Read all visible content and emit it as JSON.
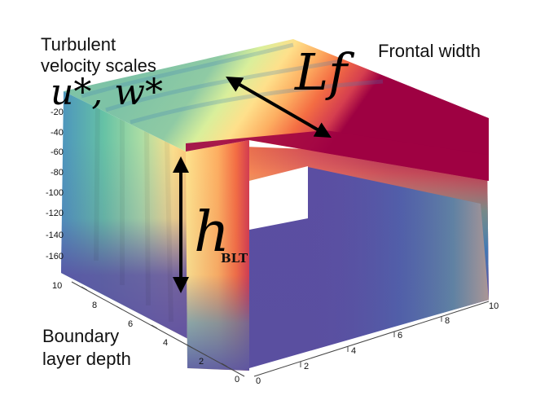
{
  "annotations": {
    "turbulent_line1": "Turbulent",
    "turbulent_line2": "velocity scales",
    "frontal_width": "Frontal width",
    "boundary_line1": "Boundary",
    "boundary_line2": "layer depth",
    "velocity_symbols": "u*, w*",
    "width_symbol": "Lf",
    "depth_symbol": "h",
    "depth_subscript": "BLT"
  },
  "axes": {
    "z_ticks": [
      "-20",
      "-40",
      "-60",
      "-80",
      "-100",
      "-120",
      "-140",
      "-160"
    ],
    "left_ticks": [
      "10",
      "8",
      "6",
      "4",
      "2",
      "0"
    ],
    "right_ticks": [
      "0",
      "2",
      "4",
      "6",
      "8",
      "10"
    ]
  },
  "colors": {
    "deep_purple": "#5b4ea2",
    "blue": "#3e7fb9",
    "teal": "#66c2a5",
    "green": "#abdda4",
    "yellow": "#fee08b",
    "orange": "#f46d43",
    "red": "#d53e4f",
    "crimson": "#9e0142"
  }
}
